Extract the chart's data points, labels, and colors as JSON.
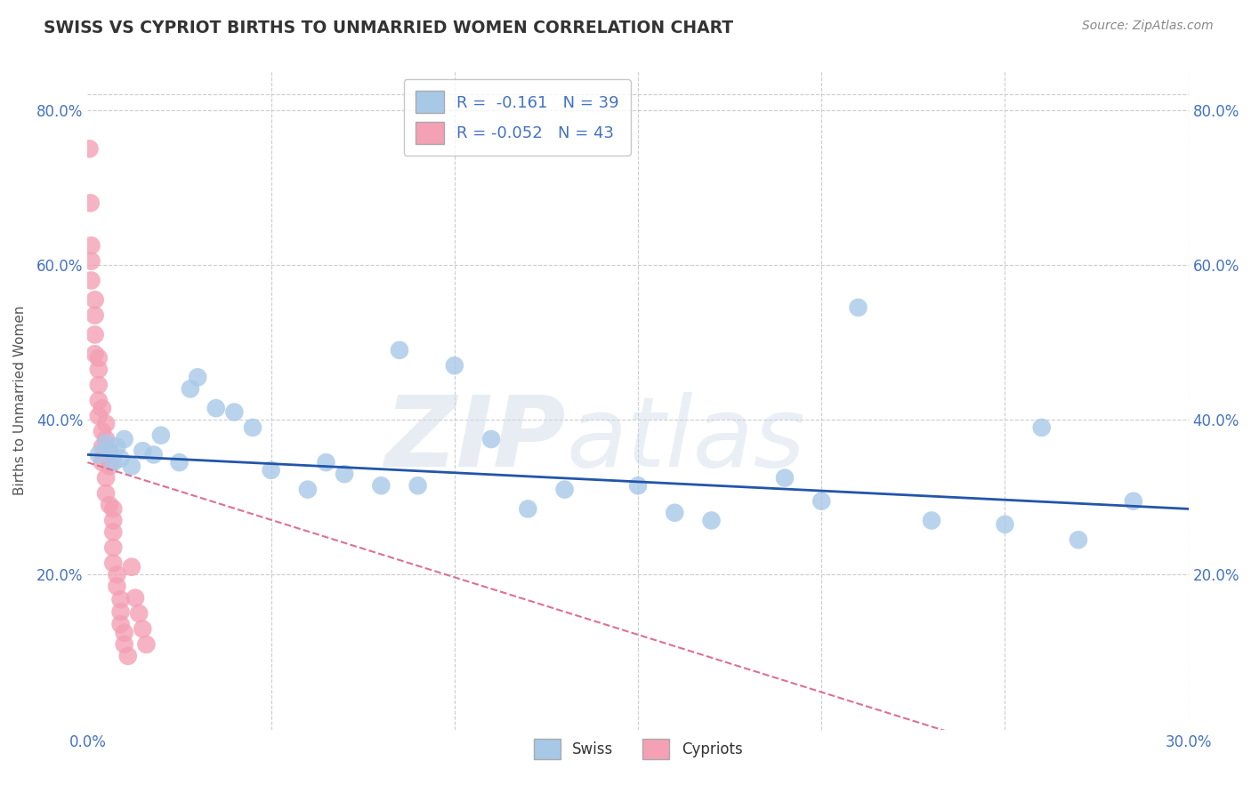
{
  "title": "SWISS VS CYPRIOT BIRTHS TO UNMARRIED WOMEN CORRELATION CHART",
  "source": "Source: ZipAtlas.com",
  "ylabel_label": "Births to Unmarried Women",
  "x_min": 0.0,
  "x_max": 0.3,
  "y_min": 0.0,
  "y_max": 0.85,
  "x_ticks": [
    0.0,
    0.05,
    0.1,
    0.15,
    0.2,
    0.25,
    0.3
  ],
  "y_ticks": [
    0.2,
    0.4,
    0.6,
    0.8
  ],
  "y_tick_labels": [
    "20.0%",
    "40.0%",
    "60.0%",
    "80.0%"
  ],
  "background_color": "#ffffff",
  "grid_color": "#cccccc",
  "swiss_color": "#a8c8e8",
  "cypriot_color": "#f4a0b5",
  "swiss_line_color": "#2255aa",
  "cypriot_line_color": "#dd7090",
  "legend_r_swiss": "R =  -0.161",
  "legend_n_swiss": "N = 39",
  "legend_r_cypriot": "R = -0.052",
  "legend_n_cypriot": "N = 43",
  "legend_text_color": "#4472c4",
  "swiss_scatter_x": [
    0.003,
    0.005,
    0.006,
    0.007,
    0.008,
    0.009,
    0.01,
    0.012,
    0.015,
    0.018,
    0.02,
    0.025,
    0.028,
    0.03,
    0.035,
    0.04,
    0.045,
    0.05,
    0.06,
    0.065,
    0.07,
    0.08,
    0.085,
    0.09,
    0.1,
    0.11,
    0.12,
    0.13,
    0.15,
    0.16,
    0.17,
    0.19,
    0.2,
    0.21,
    0.23,
    0.25,
    0.26,
    0.27,
    0.285
  ],
  "swiss_scatter_y": [
    0.355,
    0.37,
    0.36,
    0.345,
    0.365,
    0.35,
    0.375,
    0.34,
    0.36,
    0.355,
    0.38,
    0.345,
    0.44,
    0.455,
    0.415,
    0.41,
    0.39,
    0.335,
    0.31,
    0.345,
    0.33,
    0.315,
    0.49,
    0.315,
    0.47,
    0.375,
    0.285,
    0.31,
    0.315,
    0.28,
    0.27,
    0.325,
    0.295,
    0.545,
    0.27,
    0.265,
    0.39,
    0.245,
    0.295
  ],
  "cypriot_scatter_x": [
    0.0005,
    0.0008,
    0.001,
    0.001,
    0.001,
    0.002,
    0.002,
    0.002,
    0.002,
    0.003,
    0.003,
    0.003,
    0.003,
    0.003,
    0.004,
    0.004,
    0.004,
    0.004,
    0.005,
    0.005,
    0.005,
    0.005,
    0.006,
    0.006,
    0.006,
    0.007,
    0.007,
    0.007,
    0.007,
    0.007,
    0.008,
    0.008,
    0.009,
    0.009,
    0.009,
    0.01,
    0.01,
    0.011,
    0.012,
    0.013,
    0.014,
    0.015,
    0.016
  ],
  "cypriot_scatter_y": [
    0.75,
    0.68,
    0.625,
    0.605,
    0.58,
    0.555,
    0.535,
    0.51,
    0.485,
    0.465,
    0.445,
    0.425,
    0.405,
    0.48,
    0.385,
    0.365,
    0.345,
    0.415,
    0.325,
    0.305,
    0.395,
    0.375,
    0.29,
    0.36,
    0.34,
    0.285,
    0.27,
    0.255,
    0.235,
    0.215,
    0.2,
    0.185,
    0.168,
    0.152,
    0.136,
    0.125,
    0.11,
    0.095,
    0.21,
    0.17,
    0.15,
    0.13,
    0.11
  ]
}
